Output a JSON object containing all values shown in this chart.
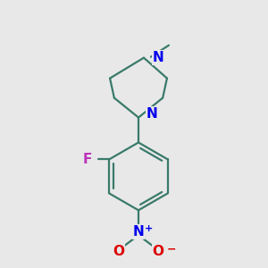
{
  "background_color": "#e8e8e8",
  "bond_color": "#3a7a6a",
  "N_color": "#0000ee",
  "F_color": "#bb33bb",
  "O_color": "#dd0000",
  "figsize": [
    3.0,
    3.0
  ],
  "dpi": 100,
  "bond_lw": 1.6,
  "font_size_atom": 11,
  "xlim": [
    -0.85,
    0.65
  ],
  "ylim": [
    -2.1,
    0.85
  ]
}
